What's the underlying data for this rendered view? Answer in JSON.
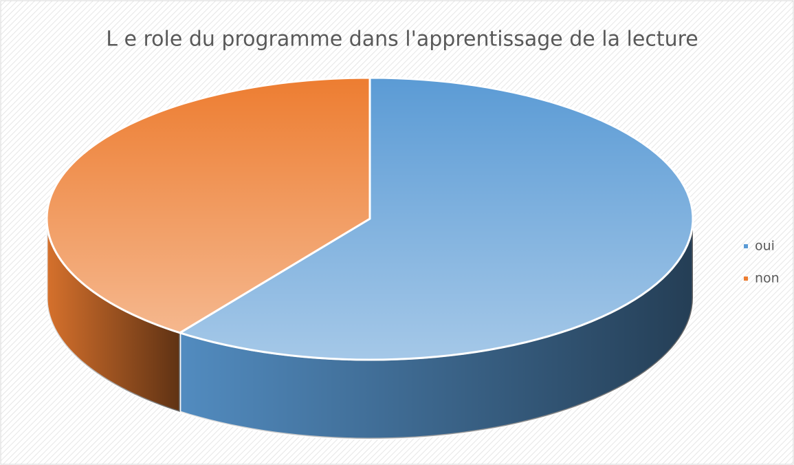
{
  "chart_data": {
    "type": "pie3d",
    "title": "L e role du programme dans l'apprentissage de la lecture",
    "categories": [
      "oui",
      "non"
    ],
    "values": [
      60,
      40
    ],
    "colors": [
      "#5b9bd5",
      "#ed7d31"
    ],
    "legend": "right"
  }
}
